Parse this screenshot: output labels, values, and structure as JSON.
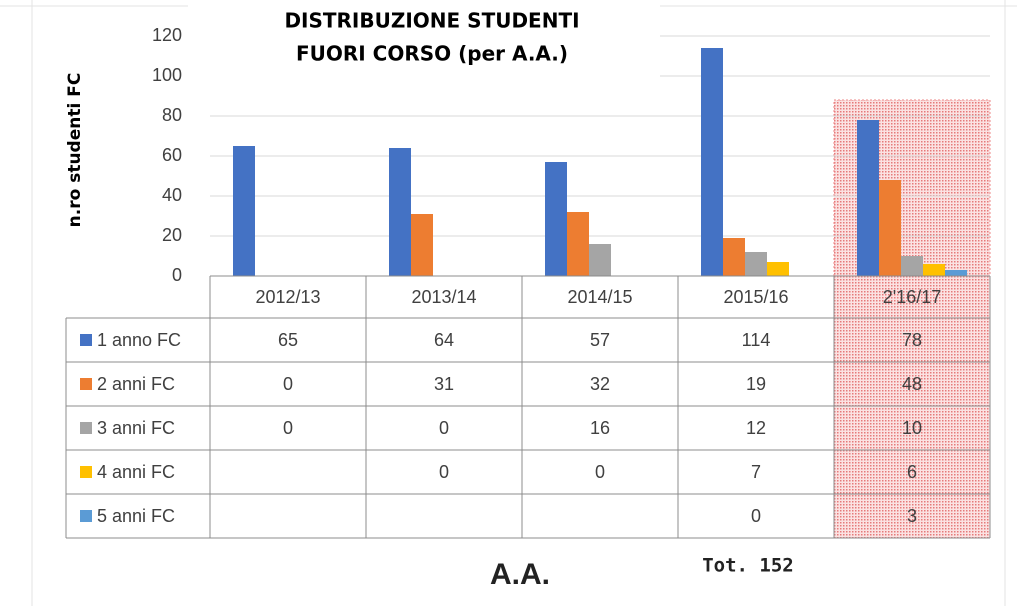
{
  "chart_data": {
    "type": "bar",
    "title": [
      "DISTRIBUZIONE STUDENTI",
      "FUORI CORSO (per A.A.)"
    ],
    "y_label": "n.ro studenti FC",
    "x_label": "A.A.",
    "annotation": "Tot. 152",
    "categories": [
      "2012/13",
      "2013/14",
      "2014/15",
      "2015/16",
      "2'16/17"
    ],
    "series": [
      {
        "name": "1 anno FC",
        "color": "#4472c4",
        "values": [
          65,
          64,
          57,
          114,
          78
        ]
      },
      {
        "name": "2 anni FC",
        "color": "#ed7d31",
        "values": [
          0,
          31,
          32,
          19,
          48
        ]
      },
      {
        "name": "3 anni FC",
        "color": "#a5a5a5",
        "values": [
          0,
          0,
          16,
          12,
          10
        ]
      },
      {
        "name": "4 anni FC",
        "color": "#ffc000",
        "values": [
          null,
          0,
          0,
          7,
          6
        ]
      },
      {
        "name": "5 anni FC",
        "color": "#5b9bd5",
        "values": [
          null,
          null,
          null,
          0,
          3
        ]
      }
    ],
    "ylim": [
      0,
      120
    ],
    "yticks": [
      0,
      20,
      40,
      60,
      80,
      100,
      120
    ],
    "grid": true
  }
}
